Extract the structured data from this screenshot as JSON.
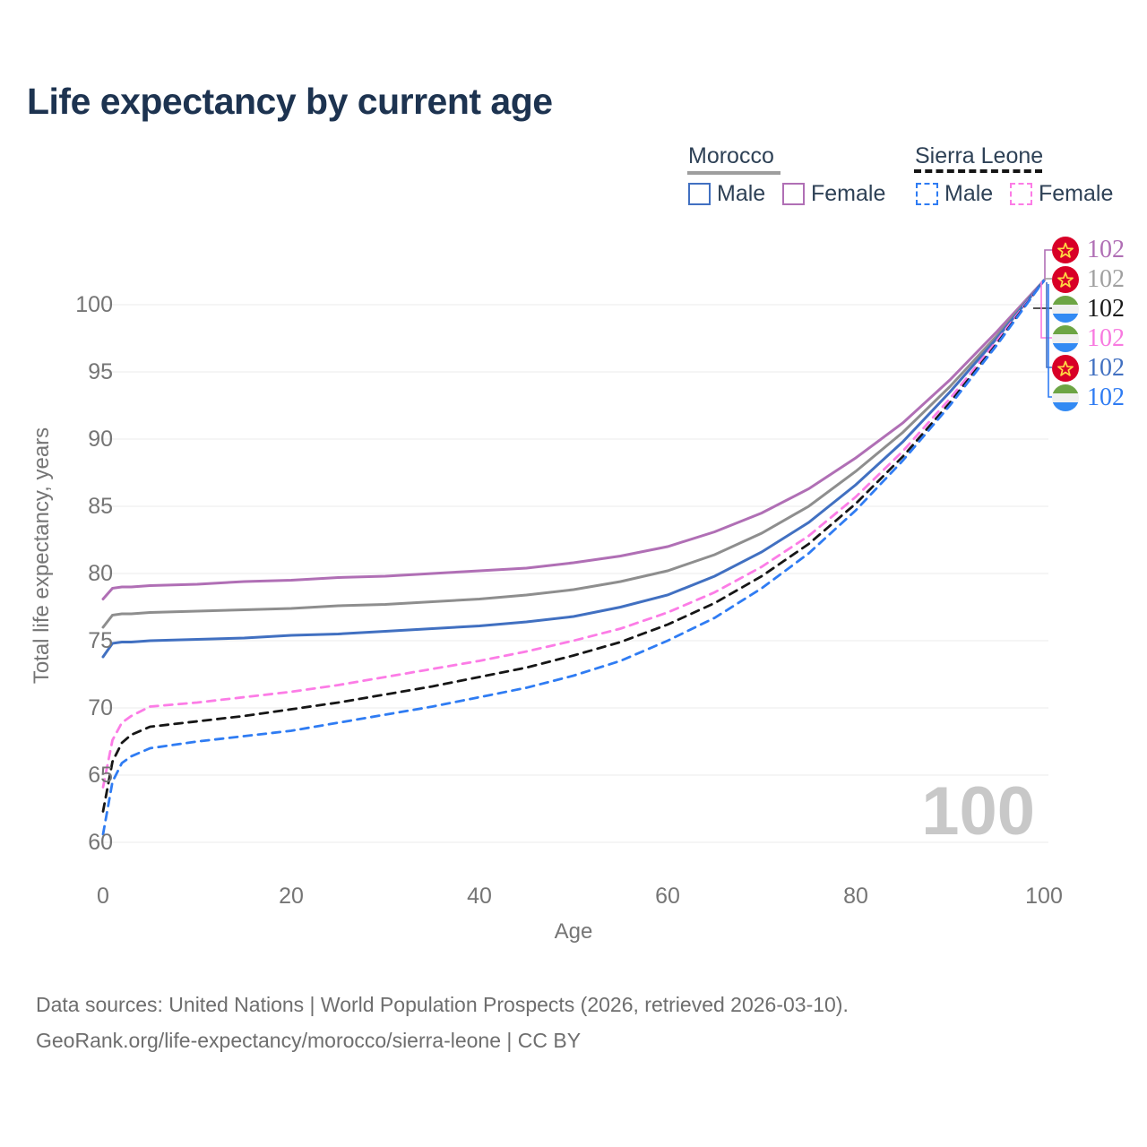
{
  "title": "Life expectancy by current age",
  "legend": {
    "groups": [
      {
        "label": "Morocco",
        "line_style": "solid",
        "underline_color": "#9e9e9e",
        "items": [
          {
            "label": "Male",
            "color": "#4170c1",
            "dashed": false
          },
          {
            "label": "Female",
            "color": "#b06fb5",
            "dashed": false
          }
        ]
      },
      {
        "label": "Sierra Leone",
        "line_style": "dashed",
        "underline_color": "#151515",
        "items": [
          {
            "label": "Male",
            "color": "#2f7cf3",
            "dashed": true
          },
          {
            "label": "Female",
            "color": "#fc7ce6",
            "dashed": true
          }
        ]
      }
    ]
  },
  "footer": {
    "line1": "Data sources: United Nations | World Population Prospects (2026, retrieved 2026-03-10).",
    "line2": "GeoRank.org/life-expectancy/morocco/sierra-leone | CC BY"
  },
  "chart_data": {
    "type": "line",
    "title": "Life expectancy by current age",
    "xlabel": "Age",
    "ylabel": "Total life expectancy, years",
    "xlim": [
      0,
      100
    ],
    "ylim": [
      60,
      103
    ],
    "x_ticks": [
      0,
      20,
      40,
      60,
      80,
      100
    ],
    "y_ticks": [
      60,
      65,
      70,
      75,
      80,
      85,
      90,
      95,
      100
    ],
    "grid": "horizontal",
    "legend_position": "top-right",
    "watermark": "100",
    "ages": [
      0,
      1,
      2,
      3,
      5,
      10,
      15,
      20,
      25,
      30,
      35,
      40,
      45,
      50,
      55,
      60,
      65,
      70,
      75,
      80,
      85,
      90,
      95,
      100
    ],
    "series": [
      {
        "id": "morocco-female",
        "name": "Morocco Female",
        "color": "#b06fb5",
        "dash": false,
        "values": [
          78.1,
          78.9,
          79.0,
          79.0,
          79.1,
          79.2,
          79.4,
          79.5,
          79.7,
          79.8,
          80.0,
          80.2,
          80.4,
          80.8,
          81.3,
          82.0,
          83.1,
          84.5,
          86.3,
          88.6,
          91.2,
          94.4,
          98.0,
          101.8
        ]
      },
      {
        "id": "morocco-all",
        "name": "Morocco Both sexes",
        "color": "#8e8e8e",
        "dash": false,
        "values": [
          76.0,
          76.9,
          77.0,
          77.0,
          77.1,
          77.2,
          77.3,
          77.4,
          77.6,
          77.7,
          77.9,
          78.1,
          78.4,
          78.8,
          79.4,
          80.2,
          81.4,
          83.0,
          85.0,
          87.6,
          90.5,
          93.9,
          97.7,
          101.8
        ]
      },
      {
        "id": "morocco-male",
        "name": "Morocco Male",
        "color": "#4170c1",
        "dash": false,
        "values": [
          73.8,
          74.8,
          74.9,
          74.9,
          75.0,
          75.1,
          75.2,
          75.4,
          75.5,
          75.7,
          75.9,
          76.1,
          76.4,
          76.8,
          77.5,
          78.4,
          79.8,
          81.6,
          83.8,
          86.6,
          89.8,
          93.5,
          97.5,
          101.8
        ]
      },
      {
        "id": "sierra-leone-female",
        "name": "Sierra Leone Female",
        "color": "#fc7ce6",
        "dash": true,
        "values": [
          64.1,
          67.6,
          68.9,
          69.4,
          70.1,
          70.4,
          70.8,
          71.2,
          71.7,
          72.3,
          72.9,
          73.5,
          74.2,
          75.0,
          75.9,
          77.1,
          78.6,
          80.5,
          82.8,
          85.7,
          89.1,
          93.0,
          97.3,
          101.8
        ]
      },
      {
        "id": "sierra-leone-all",
        "name": "Sierra Leone Both sexes",
        "color": "#161616",
        "dash": true,
        "values": [
          62.3,
          66.0,
          67.4,
          68.0,
          68.6,
          69.0,
          69.4,
          69.9,
          70.4,
          71.0,
          71.6,
          72.3,
          73.0,
          73.9,
          74.9,
          76.2,
          77.8,
          79.8,
          82.2,
          85.2,
          88.7,
          92.7,
          97.1,
          101.8
        ]
      },
      {
        "id": "sierra-leone-male",
        "name": "Sierra Leone Male",
        "color": "#2f7cf3",
        "dash": true,
        "values": [
          60.6,
          64.5,
          65.9,
          66.4,
          67.0,
          67.5,
          67.9,
          68.3,
          68.9,
          69.5,
          70.1,
          70.8,
          71.5,
          72.4,
          73.5,
          75.0,
          76.7,
          78.9,
          81.5,
          84.7,
          88.4,
          92.5,
          97.0,
          101.8
        ]
      }
    ],
    "end_labels": [
      {
        "value": "102",
        "color": "#b06fb5",
        "flag": "morocco"
      },
      {
        "value": "102",
        "color": "#a0a0a0",
        "flag": "morocco"
      },
      {
        "value": "102",
        "color": "#1a1a1a",
        "flag": "sierra-leone"
      },
      {
        "value": "102",
        "color": "#f87ae0",
        "flag": "sierra-leone"
      },
      {
        "value": "102",
        "color": "#4170c1",
        "flag": "morocco"
      },
      {
        "value": "102",
        "color": "#2f7cf3",
        "flag": "sierra-leone"
      }
    ]
  }
}
